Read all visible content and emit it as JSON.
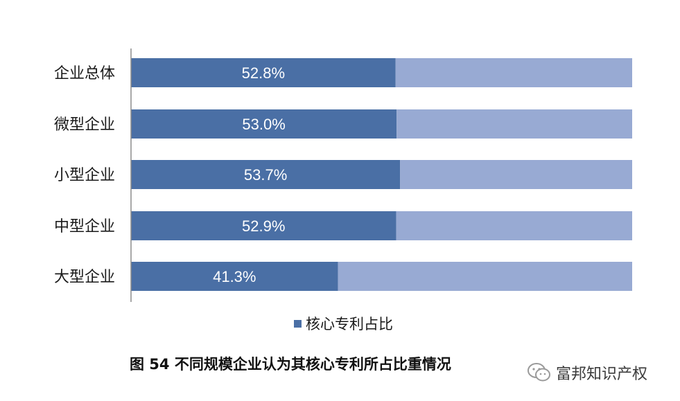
{
  "chart_data": {
    "type": "bar",
    "orientation": "horizontal",
    "stacked_percent": true,
    "categories": [
      "企业总体",
      "微型企业",
      "小型企业",
      "中型企业",
      "大型企业"
    ],
    "series": [
      {
        "name": "核心专利占比",
        "values": [
          52.8,
          53.0,
          53.7,
          52.9,
          41.3
        ],
        "labels": [
          "52.8%",
          "53.0%",
          "53.7%",
          "52.9%",
          "41.3%"
        ],
        "color": "#4a6fa5"
      },
      {
        "values": [
          47.2,
          47.0,
          46.3,
          47.1,
          58.7
        ],
        "color": "#98aad3"
      }
    ],
    "xlim": [
      0,
      100
    ],
    "grid": false,
    "legend": "bottom-center"
  },
  "legend": {
    "label": "核心专利占比",
    "color": "#4a6fa5"
  },
  "caption": "图 54  不同规模企业认为其核心专利所占比重情况",
  "watermark": {
    "text": "富邦知识产权",
    "icon": "wechat-icon"
  }
}
